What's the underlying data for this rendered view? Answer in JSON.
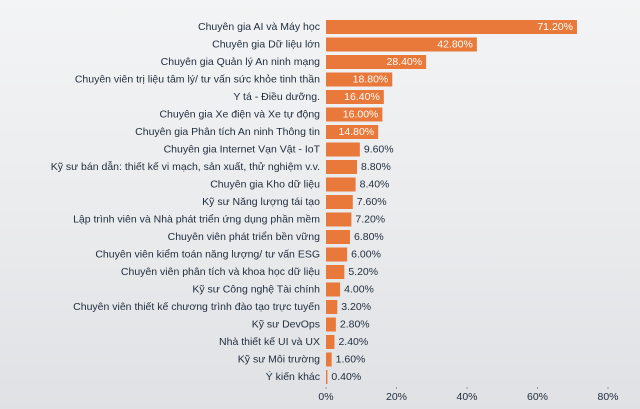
{
  "chart_data": {
    "type": "bar",
    "orientation": "horizontal",
    "categories": [
      "Chuyên gia AI và Máy học",
      "Chuyên gia Dữ liệu lớn",
      "Chuyên gia Quản lý An ninh mạng",
      "Chuyên viên trị liệu tâm lý/ tư vấn sức khỏe tinh thần",
      "Y tá - Điều dưỡng.",
      "Chuyên gia Xe điện và Xe tự động",
      "Chuyên gia Phân tích An ninh Thông tin",
      "Chuyên gia Internet Vạn Vật - IoT",
      "Kỹ sư bán dẫn: thiết kế vi mạch, sản xuất, thử nghiệm v.v.",
      "Chuyên gia Kho dữ liệu",
      "Kỹ sư Năng lượng tái tạo",
      "Lập trình viên và Nhà phát triển ứng dụng phần mềm",
      "Chuyên viên phát triển bền vững",
      "Chuyên viên kiểm toán năng lượng/ tư vấn ESG",
      "Chuyên viên phân tích và khoa học dữ liệu",
      "Kỹ sư Công nghệ Tài chính",
      "Chuyên viên thiết kế chương trình đào tạo trực tuyến",
      "Kỹ sư DevOps",
      "Nhà thiết kế UI và UX",
      "Kỹ sư Môi trường",
      "Ý kiến khác"
    ],
    "values": [
      71.2,
      42.8,
      28.4,
      18.8,
      16.4,
      16.0,
      14.8,
      9.6,
      8.8,
      8.4,
      7.6,
      7.2,
      6.8,
      6.0,
      5.2,
      4.0,
      3.2,
      2.8,
      2.4,
      1.6,
      0.4
    ],
    "value_labels": [
      "71.20%",
      "42.80%",
      "28.40%",
      "18.80%",
      "16.40%",
      "16.00%",
      "14.80%",
      "9.60%",
      "8.80%",
      "8.40%",
      "7.60%",
      "7.20%",
      "6.80%",
      "6.00%",
      "5.20%",
      "4.00%",
      "3.20%",
      "2.80%",
      "2.40%",
      "1.60%",
      "0.40%"
    ],
    "color": "#e8793a",
    "xlim": [
      0,
      80
    ],
    "xticks": [
      {
        "value": 0,
        "label": "0%"
      },
      {
        "value": 20,
        "label": "20%"
      },
      {
        "value": 40,
        "label": "40%"
      },
      {
        "value": 60,
        "label": "60%"
      },
      {
        "value": 80,
        "label": "80%"
      }
    ]
  }
}
